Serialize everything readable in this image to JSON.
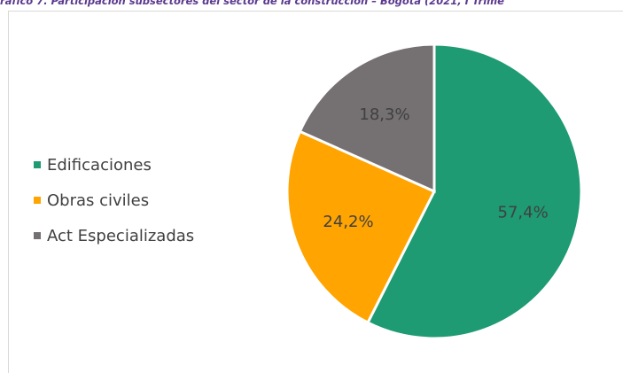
{
  "title": "ráfico 7. Participación subsectores del sector de la construcción – Bogotá (2021, I Trime",
  "chart_data": {
    "type": "pie",
    "categories": [
      "Edificaciones",
      "Obras civiles",
      "Act Especializadas"
    ],
    "values": [
      57.4,
      24.2,
      18.3
    ],
    "labels": [
      "57,4%",
      "24,2%",
      "18,3%"
    ],
    "colors": [
      "#1e9b72",
      "#ffa400",
      "#757071"
    ],
    "legend_position": "left"
  }
}
